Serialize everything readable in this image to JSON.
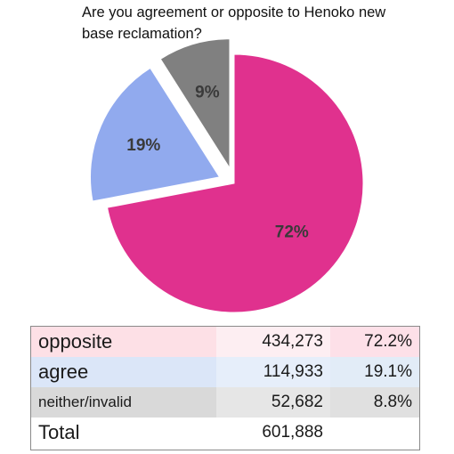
{
  "chart_data": {
    "type": "pie",
    "title": "Are you agreement or opposite to Henoko new base reclamation?",
    "series": [
      {
        "name": "opposite",
        "value": 72,
        "label": "72%",
        "color": "#e0318e"
      },
      {
        "name": "agree",
        "value": 19,
        "label": "19%",
        "color": "#91aaee"
      },
      {
        "name": "neither/invalid",
        "value": 9,
        "label": "9%",
        "color": "#808080"
      }
    ]
  },
  "table": {
    "rows": [
      {
        "label": "opposite",
        "count": "434,273",
        "percent": "72.2%",
        "label_bg": "#fde0e6",
        "count_bg": "#fdeef2",
        "pct_bg": "#fde0e8"
      },
      {
        "label": "agree",
        "count": "114,933",
        "percent": "19.1%",
        "label_bg": "#dbe6f8",
        "count_bg": "#e6eefa",
        "pct_bg": "#e2ecf7"
      },
      {
        "label": "neither/invalid",
        "count": "52,682",
        "percent": "8.8%",
        "label_bg": "#d9d9d9",
        "count_bg": "#e6e6e6",
        "pct_bg": "#e0e0e0"
      },
      {
        "label": "Total",
        "count": "601,888",
        "percent": "",
        "label_bg": "#ffffff",
        "count_bg": "#ffffff",
        "pct_bg": "#ffffff"
      }
    ]
  }
}
